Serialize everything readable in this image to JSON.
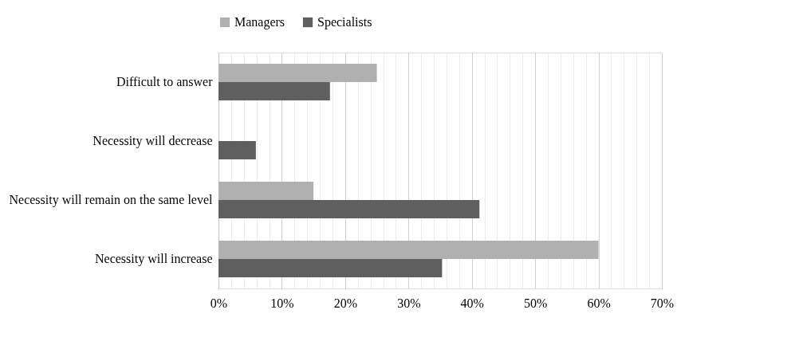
{
  "chart_data": {
    "type": "bar",
    "orientation": "horizontal",
    "categories": [
      "Difficult to answer",
      "Necessity will decrease",
      "Necessity will remain on the same level",
      "Necessity will increase"
    ],
    "series": [
      {
        "name": "Managers",
        "color": "#b0b0b0",
        "values": [
          25,
          null,
          15,
          60
        ]
      },
      {
        "name": "Specialists",
        "color": "#5f5f5f",
        "values": [
          17.6,
          5.9,
          41.2,
          35.3
        ]
      }
    ],
    "xlim": [
      0,
      70
    ],
    "xticks": [
      {
        "value": 0,
        "label": "0%"
      },
      {
        "value": 2,
        "label": null
      },
      {
        "value": 4,
        "label": null
      },
      {
        "value": 6,
        "label": null
      },
      {
        "value": 8,
        "label": null
      },
      {
        "value": 10,
        "label": "10%"
      },
      {
        "value": 12,
        "label": null
      },
      {
        "value": 14,
        "label": null
      },
      {
        "value": 16,
        "label": null
      },
      {
        "value": 18,
        "label": null
      },
      {
        "value": 20,
        "label": "20%"
      },
      {
        "value": 22,
        "label": null
      },
      {
        "value": 24,
        "label": null
      },
      {
        "value": 26,
        "label": null
      },
      {
        "value": 28,
        "label": null
      },
      {
        "value": 30,
        "label": "30%"
      },
      {
        "value": 32,
        "label": null
      },
      {
        "value": 34,
        "label": null
      },
      {
        "value": 36,
        "label": null
      },
      {
        "value": 38,
        "label": null
      },
      {
        "value": 40,
        "label": "40%"
      },
      {
        "value": 42,
        "label": null
      },
      {
        "value": 44,
        "label": null
      },
      {
        "value": 46,
        "label": null
      },
      {
        "value": 48,
        "label": null
      },
      {
        "value": 50,
        "label": "50%"
      },
      {
        "value": 52,
        "label": null
      },
      {
        "value": 54,
        "label": null
      },
      {
        "value": 56,
        "label": null
      },
      {
        "value": 58,
        "label": null
      },
      {
        "value": 60,
        "label": "60%"
      },
      {
        "value": 62,
        "label": null
      },
      {
        "value": 64,
        "label": null
      },
      {
        "value": 66,
        "label": null
      },
      {
        "value": 68,
        "label": null
      },
      {
        "value": 70,
        "label": "70%"
      }
    ],
    "grid": "x",
    "legend": "top"
  }
}
